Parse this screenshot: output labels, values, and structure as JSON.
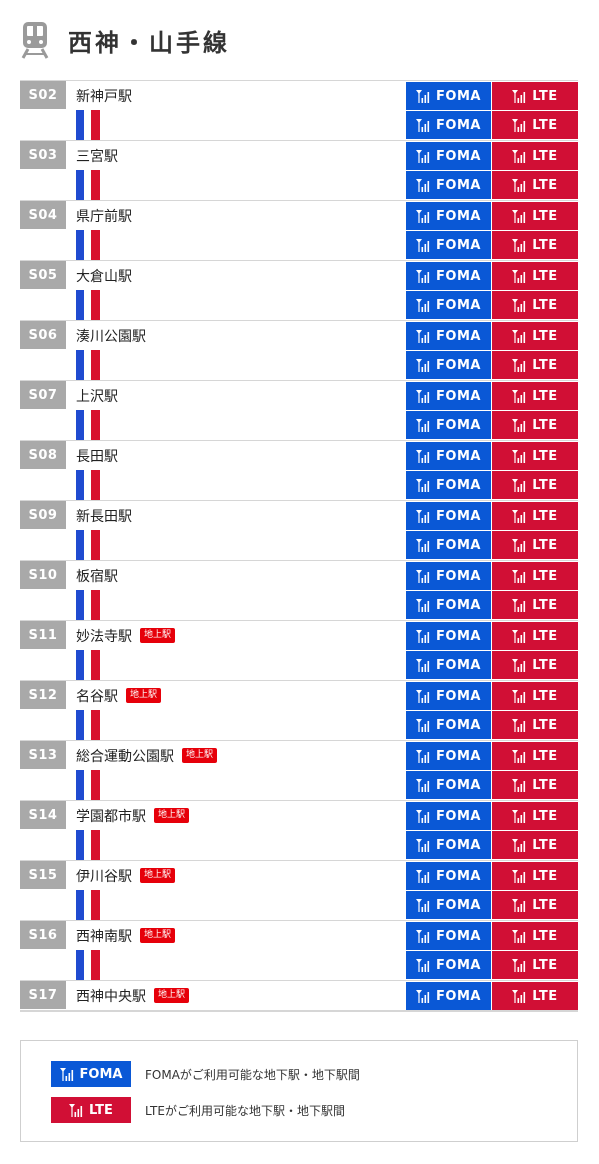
{
  "header": {
    "title": "西神・山手線",
    "icon": "train-icon"
  },
  "badges": {
    "foma": "FOMA",
    "lte": "LTE",
    "above_ground": "地上駅"
  },
  "colors": {
    "foma": "#0a58d6",
    "lte": "#d10f35",
    "line_blue": "#1f4bd0",
    "line_red": "#d8102e",
    "code_bg": "#a9a9a9"
  },
  "stations": [
    {
      "code": "S02",
      "name": "新神戸駅",
      "above_ground": false
    },
    {
      "code": "S03",
      "name": "三宮駅",
      "above_ground": false
    },
    {
      "code": "S04",
      "name": "県庁前駅",
      "above_ground": false
    },
    {
      "code": "S05",
      "name": "大倉山駅",
      "above_ground": false
    },
    {
      "code": "S06",
      "name": "湊川公園駅",
      "above_ground": false
    },
    {
      "code": "S07",
      "name": "上沢駅",
      "above_ground": false
    },
    {
      "code": "S08",
      "name": "長田駅",
      "above_ground": false
    },
    {
      "code": "S09",
      "name": "新長田駅",
      "above_ground": false
    },
    {
      "code": "S10",
      "name": "板宿駅",
      "above_ground": false
    },
    {
      "code": "S11",
      "name": "妙法寺駅",
      "above_ground": true
    },
    {
      "code": "S12",
      "name": "名谷駅",
      "above_ground": true
    },
    {
      "code": "S13",
      "name": "総合運動公園駅",
      "above_ground": true
    },
    {
      "code": "S14",
      "name": "学園都市駅",
      "above_ground": true
    },
    {
      "code": "S15",
      "name": "伊川谷駅",
      "above_ground": true
    },
    {
      "code": "S16",
      "name": "西神南駅",
      "above_ground": true
    },
    {
      "code": "S17",
      "name": "西神中央駅",
      "above_ground": true
    }
  ],
  "legend": {
    "foma_label": "FOMA",
    "foma_desc": "FOMAがご利用可能な地下駅・地下駅間",
    "lte_label": "LTE",
    "lte_desc": "LTEがご利用可能な地下駅・地下駅間"
  }
}
